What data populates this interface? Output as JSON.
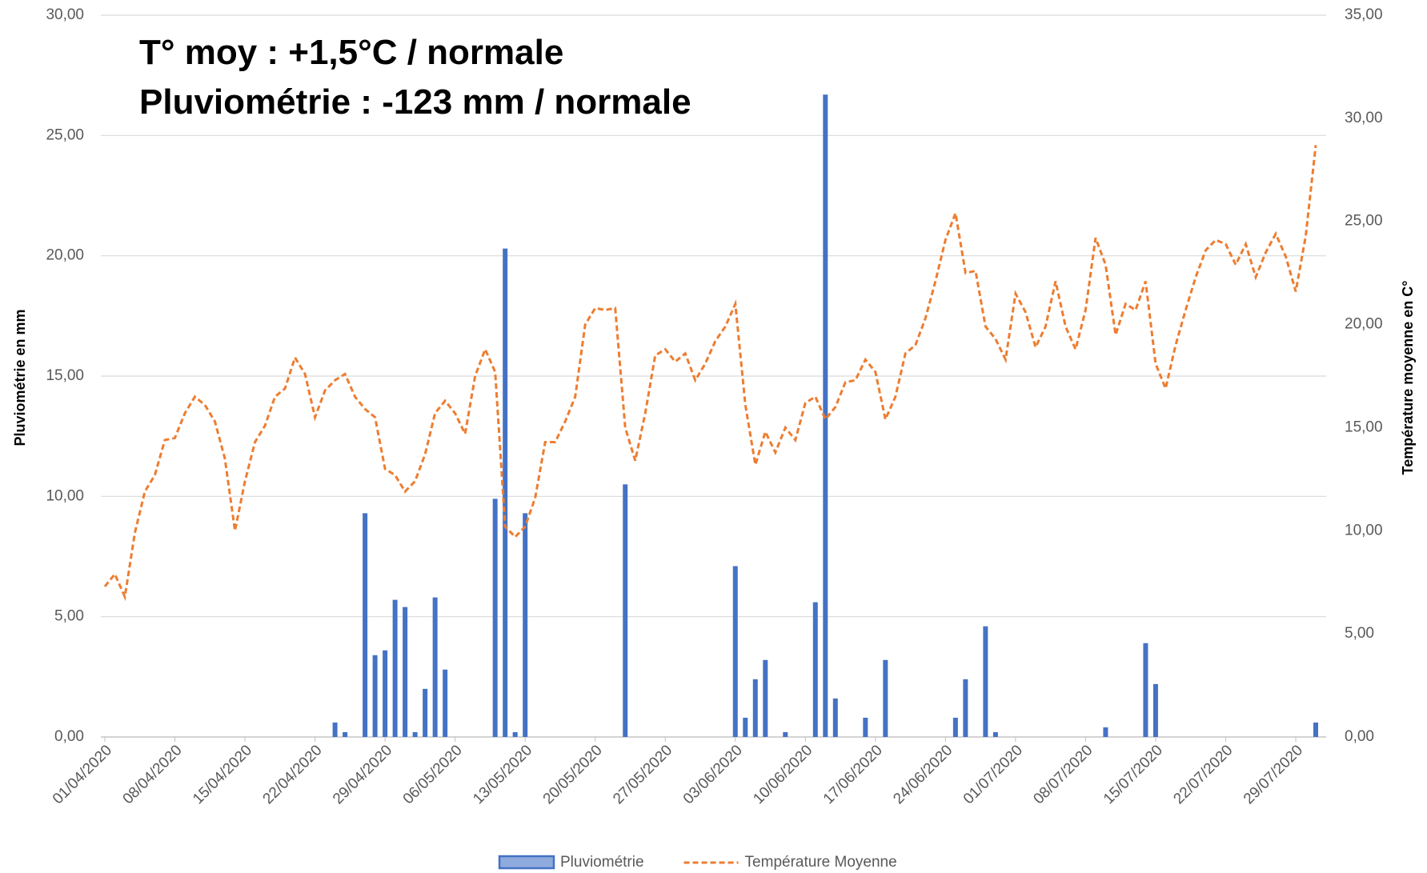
{
  "chart_data": {
    "type": "bar_line",
    "annotations": [
      "T° moy : +1,5°C / normale",
      "Pluviométrie : -123 mm / normale"
    ],
    "ylabel": "Pluviométrie en mm",
    "y2label": "Température moyenne en C°",
    "categories": [
      "01/04/2020",
      null,
      null,
      null,
      null,
      null,
      null,
      "08/04/2020",
      null,
      null,
      null,
      null,
      null,
      null,
      "15/04/2020",
      null,
      null,
      null,
      null,
      null,
      null,
      "22/04/2020",
      null,
      null,
      null,
      null,
      null,
      null,
      "29/04/2020",
      null,
      null,
      null,
      null,
      null,
      null,
      "06/05/2020",
      null,
      null,
      null,
      null,
      null,
      null,
      "13/05/2020",
      null,
      null,
      null,
      null,
      null,
      null,
      "20/05/2020",
      null,
      null,
      null,
      null,
      null,
      null,
      "27/05/2020",
      null,
      null,
      null,
      null,
      null,
      null,
      "03/06/2020",
      null,
      null,
      null,
      null,
      null,
      null,
      "10/06/2020",
      null,
      null,
      null,
      null,
      null,
      null,
      "17/06/2020",
      null,
      null,
      null,
      null,
      null,
      null,
      "24/06/2020",
      null,
      null,
      null,
      null,
      null,
      null,
      "01/07/2020",
      null,
      null,
      null,
      null,
      null,
      null,
      "08/07/2020",
      null,
      null,
      null,
      null,
      null,
      null,
      "15/07/2020",
      null,
      null,
      null,
      null,
      null,
      null,
      "22/07/2020",
      null,
      null,
      null,
      null,
      null,
      null,
      "29/07/2020",
      null,
      null
    ],
    "series": [
      {
        "name": "Pluviométrie",
        "type": "bar",
        "color": "#4472c4",
        "axis": "y",
        "values": [
          0,
          0,
          0,
          0,
          0,
          0,
          0,
          0,
          0,
          0,
          0,
          0,
          0,
          0,
          0,
          0,
          0,
          0,
          0,
          0,
          0,
          0,
          0,
          0.6,
          0.2,
          0,
          9.3,
          3.4,
          3.6,
          5.7,
          5.4,
          0.2,
          2.0,
          5.8,
          2.8,
          0,
          0,
          0,
          0,
          9.9,
          20.3,
          0.2,
          9.3,
          0,
          0,
          0,
          0,
          0,
          0,
          0,
          0,
          0,
          10.5,
          0,
          0,
          0,
          0,
          0,
          0,
          0,
          0,
          0,
          0,
          7.1,
          0.8,
          2.4,
          3.2,
          0,
          0.2,
          0,
          0,
          5.6,
          26.7,
          1.6,
          0,
          0,
          0.8,
          0,
          3.2,
          0,
          0,
          0,
          0,
          0,
          0,
          0.8,
          2.4,
          0,
          4.6,
          0.2,
          0,
          0,
          0,
          0,
          0,
          0,
          0,
          0,
          0,
          0,
          0.4,
          0,
          0,
          0,
          3.9,
          2.2,
          0,
          0,
          0,
          0,
          0,
          0,
          0,
          0,
          0,
          0,
          0,
          0,
          0,
          0,
          0,
          0.6
        ]
      },
      {
        "name": "Température Moyenne",
        "type": "line",
        "color": "#ed7d31",
        "axis": "y2",
        "values": [
          7.3,
          7.9,
          6.8,
          9.9,
          11.9,
          12.7,
          14.4,
          14.5,
          15.7,
          16.5,
          16.1,
          15.3,
          13.5,
          10.0,
          12.4,
          14.3,
          15.1,
          16.5,
          16.9,
          18.4,
          17.6,
          15.5,
          16.8,
          17.3,
          17.6,
          16.5,
          15.9,
          15.5,
          13.0,
          12.7,
          11.9,
          12.4,
          13.7,
          15.7,
          16.3,
          15.7,
          14.7,
          17.5,
          18.8,
          17.7,
          10.2,
          9.7,
          10.2,
          11.6,
          14.3,
          14.3,
          15.3,
          16.5,
          20.0,
          20.8,
          20.7,
          20.8,
          15.0,
          13.4,
          15.7,
          18.5,
          18.8,
          18.2,
          18.6,
          17.3,
          18.1,
          19.2,
          19.9,
          21.0,
          16.1,
          13.2,
          14.8,
          13.8,
          15.0,
          14.4,
          16.2,
          16.5,
          15.4,
          16.0,
          17.2,
          17.3,
          18.3,
          17.7,
          15.4,
          16.5,
          18.6,
          19.0,
          20.3,
          22.1,
          24.1,
          25.4,
          22.5,
          22.6,
          19.9,
          19.3,
          18.3,
          21.5,
          20.6,
          18.9,
          19.9,
          22.1,
          19.9,
          18.8,
          20.7,
          24.2,
          22.9,
          19.5,
          21.0,
          20.7,
          22.1,
          18.1,
          16.9,
          19.0,
          20.7,
          22.3,
          23.6,
          24.1,
          23.9,
          22.9,
          23.9,
          22.3,
          23.5,
          24.4,
          23.3,
          21.6,
          24.3,
          28.7
        ]
      }
    ],
    "ylim": [
      0,
      30
    ],
    "yticks": [
      {
        "value": 0,
        "label": "0,00"
      },
      {
        "value": 5,
        "label": "5,00"
      },
      {
        "value": 10,
        "label": "10,00"
      },
      {
        "value": 15,
        "label": "15,00"
      },
      {
        "value": 20,
        "label": "20,00"
      },
      {
        "value": 25,
        "label": "25,00"
      },
      {
        "value": 30,
        "label": "30,00"
      }
    ],
    "y2lim": [
      0,
      35
    ],
    "y2ticks": [
      {
        "value": 0,
        "label": "0,00"
      },
      {
        "value": 5,
        "label": "5,00"
      },
      {
        "value": 10,
        "label": "10,00"
      },
      {
        "value": 15,
        "label": "15,00"
      },
      {
        "value": 20,
        "label": "20,00"
      },
      {
        "value": 25,
        "label": "25,00"
      },
      {
        "value": 30,
        "label": "30,00"
      },
      {
        "value": 35,
        "label": "35,00"
      }
    ],
    "grid": true,
    "legend": "bottom"
  }
}
